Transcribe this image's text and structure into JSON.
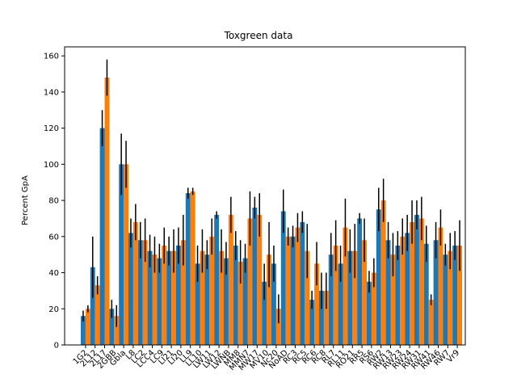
{
  "chart_data": {
    "type": "bar",
    "title": "Toxgreen data",
    "ylabel": "Percent GpA",
    "categories": [
      "1G2",
      "2L12",
      "2L17",
      "2GBB",
      "Gbla",
      "L8",
      "LC2",
      "LCC4",
      "LC9",
      "LI21",
      "LI20",
      "LL9",
      "LL10",
      "LW11",
      "LW12",
      "LWNB",
      "MM8",
      "MMN7",
      "MW17",
      "MV10",
      "Nc20",
      "NoAD",
      "RC3",
      "RC5",
      "RC6",
      "RC8",
      "RL7",
      "RL11",
      "RO21",
      "RR5",
      "RS6",
      "RW2",
      "RW13",
      "RW23",
      "RW24",
      "RW31",
      "RW41",
      "RW46",
      "RW7",
      "Vr9"
    ],
    "series": [
      {
        "name": "blue",
        "color": "#1f77b4",
        "values": [
          16,
          43,
          120,
          20,
          100,
          62,
          58,
          52,
          48,
          52,
          55,
          84,
          45,
          50,
          72,
          48,
          55,
          48,
          76,
          35,
          45,
          74,
          60,
          68,
          25,
          30,
          50,
          45,
          52,
          70,
          35,
          75,
          58,
          55,
          62,
          72,
          56,
          58,
          50,
          55
        ],
        "errors": [
          3,
          17,
          10,
          5,
          17,
          8,
          10,
          9,
          8,
          8,
          10,
          3,
          10,
          8,
          2,
          9,
          8,
          8,
          6,
          10,
          10,
          12,
          6,
          6,
          5,
          10,
          12,
          10,
          12,
          3,
          6,
          12,
          10,
          8,
          10,
          8,
          10,
          10,
          6,
          8
        ]
      },
      {
        "name": "orange",
        "color": "#ff7f0e",
        "values": [
          20,
          33,
          148,
          16,
          100,
          68,
          58,
          50,
          55,
          52,
          58,
          85,
          52,
          60,
          52,
          72,
          46,
          70,
          72,
          50,
          20,
          60,
          65,
          52,
          45,
          30,
          55,
          65,
          52,
          58,
          40,
          80,
          50,
          60,
          68,
          70,
          25,
          65,
          52,
          55
        ],
        "errors": [
          2,
          5,
          10,
          6,
          13,
          10,
          12,
          10,
          10,
          12,
          14,
          2,
          12,
          10,
          12,
          10,
          12,
          15,
          12,
          18,
          8,
          5,
          8,
          15,
          12,
          10,
          14,
          16,
          15,
          12,
          8,
          12,
          12,
          10,
          12,
          12,
          3,
          10,
          10,
          14
        ]
      }
    ],
    "ylim": [
      0,
      165
    ],
    "yticks": [
      0,
      20,
      40,
      60,
      80,
      100,
      120,
      140,
      160
    ]
  }
}
